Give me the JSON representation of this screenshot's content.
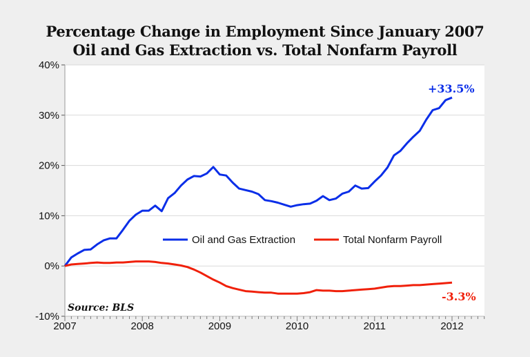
{
  "chart_data": {
    "type": "line",
    "title": "Percentage Change in Employment Since January 2007",
    "subtitle": "Oil and Gas Extraction vs. Total Nonfarm Payroll",
    "xlabel": "",
    "ylabel": "",
    "xlim": [
      "2007-01",
      "2012-06"
    ],
    "ylim": [
      -10,
      40
    ],
    "x_ticks": [
      "2007",
      "2008",
      "2009",
      "2010",
      "2011",
      "2012"
    ],
    "y_ticks": [
      "-10%",
      "0%",
      "10%",
      "20%",
      "30%",
      "40%"
    ],
    "y_tick_values": [
      -10,
      0,
      10,
      20,
      30,
      40
    ],
    "grid": "horizontal",
    "legend_position": "center",
    "x_start": "2007-01",
    "x_frequency": "monthly",
    "series": [
      {
        "name": "Oil and Gas Extraction",
        "color": "#0a2ee8",
        "values": [
          0,
          1.7,
          2.5,
          3.2,
          3.3,
          4.3,
          5.1,
          5.5,
          5.5,
          7.2,
          9.0,
          10.2,
          11.0,
          11.0,
          12.0,
          10.9,
          13.5,
          14.5,
          16.0,
          17.2,
          17.9,
          17.8,
          18.4,
          19.7,
          18.2,
          18.0,
          16.6,
          15.4,
          15.1,
          14.8,
          14.3,
          13.1,
          12.9,
          12.6,
          12.2,
          11.8,
          12.1,
          12.3,
          12.4,
          13.0,
          13.9,
          13.1,
          13.4,
          14.4,
          14.8,
          16.0,
          15.4,
          15.5,
          16.8,
          18.0,
          19.6,
          22.0,
          22.9,
          24.4,
          25.7,
          26.9,
          29.1,
          31.0,
          31.4,
          33.0,
          33.5
        ]
      },
      {
        "name": "Total Nonfarm Payroll",
        "color": "#f0200a",
        "values": [
          0,
          0.3,
          0.4,
          0.5,
          0.6,
          0.7,
          0.6,
          0.6,
          0.7,
          0.7,
          0.8,
          0.9,
          0.9,
          0.9,
          0.8,
          0.6,
          0.5,
          0.3,
          0.1,
          -0.2,
          -0.7,
          -1.3,
          -2.0,
          -2.7,
          -3.3,
          -4.0,
          -4.4,
          -4.7,
          -5.0,
          -5.1,
          -5.2,
          -5.3,
          -5.3,
          -5.5,
          -5.5,
          -5.5,
          -5.5,
          -5.4,
          -5.2,
          -4.8,
          -4.9,
          -4.9,
          -5.0,
          -5.0,
          -4.9,
          -4.8,
          -4.7,
          -4.6,
          -4.5,
          -4.3,
          -4.1,
          -4.0,
          -4.0,
          -3.9,
          -3.8,
          -3.8,
          -3.7,
          -3.6,
          -3.5,
          -3.4,
          -3.3
        ]
      }
    ],
    "annotations": [
      {
        "text": "+33.5%",
        "color": "#0a2ee8"
      },
      {
        "text": "-3.3%",
        "color": "#f0200a"
      },
      {
        "text": "Source: BLS",
        "color": "#111111"
      }
    ]
  }
}
